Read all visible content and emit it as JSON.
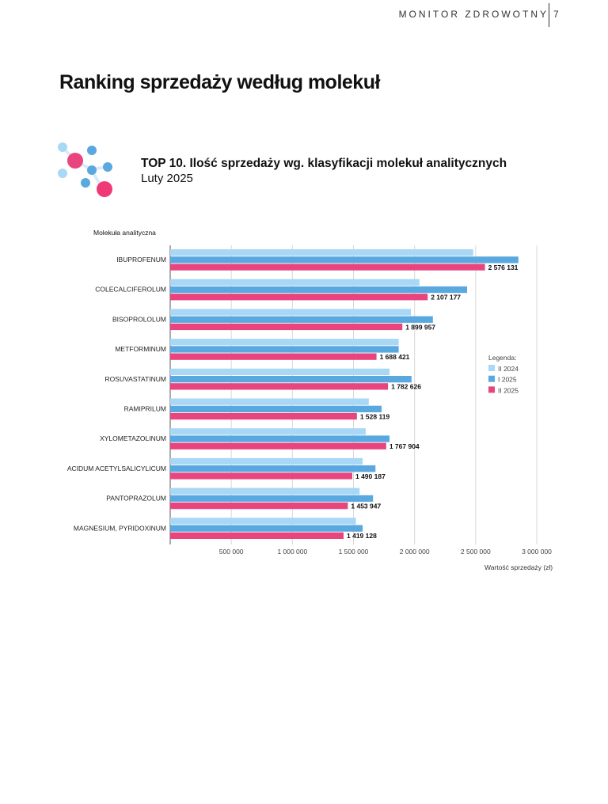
{
  "header": {
    "publication": "MONITOR ZDROWOTNY",
    "page_number": "7"
  },
  "page_title": "Ranking sprzedaży według molekuł",
  "chart_data": {
    "type": "bar",
    "orientation": "horizontal",
    "title": "TOP 10. Ilość sprzedaży wg. klasyfikacji molekuł analitycznych",
    "subtitle": "Luty 2025",
    "ylabel": "Molekuła analityczna",
    "xlabel": "Wartość sprzedaży (zł)",
    "xlim": [
      0,
      3000000
    ],
    "xticks": [
      500000,
      1000000,
      1500000,
      2000000,
      2500000,
      3000000
    ],
    "xtick_labels": [
      "500 000",
      "1 000 000",
      "1 500 000",
      "2 000 000",
      "2 500 000",
      "3 000 000"
    ],
    "grid": true,
    "legend_title": "Legenda:",
    "legend_position": "right",
    "categories": [
      "IBUPROFENUM",
      "COLECALCIFEROLUM",
      "BISOPROLOLUM",
      "METFORMINUM",
      "ROSUVASTATINUM",
      "RAMIPRILUM",
      "XYLOMETAZOLINUM",
      "ACIDUM ACETYLSALICYLICUM",
      "PANTOPRAZOLUM",
      "MAGNESIUM, PYRIDOXINUM"
    ],
    "series": [
      {
        "name": "II 2024",
        "color": "#a8d8f5",
        "values": [
          2480000,
          2040000,
          1970000,
          1870000,
          1795000,
          1625000,
          1600000,
          1575000,
          1550000,
          1520000
        ]
      },
      {
        "name": "I 2025",
        "color": "#5aa8e0",
        "values": [
          2850000,
          2430000,
          2150000,
          1870000,
          1975000,
          1730000,
          1795000,
          1680000,
          1660000,
          1575000
        ]
      },
      {
        "name": "II 2025",
        "color": "#e8457e",
        "values": [
          2576131,
          2107177,
          1899957,
          1688421,
          1782626,
          1528119,
          1767904,
          1490187,
          1453947,
          1419128
        ]
      }
    ],
    "data_labels": [
      "2 576 131",
      "2 107 177",
      "1 899 957",
      "1 688 421",
      "1 782 626",
      "1 528 119",
      "1 767 904",
      "1 490 187",
      "1 453 947",
      "1 419 128"
    ]
  }
}
